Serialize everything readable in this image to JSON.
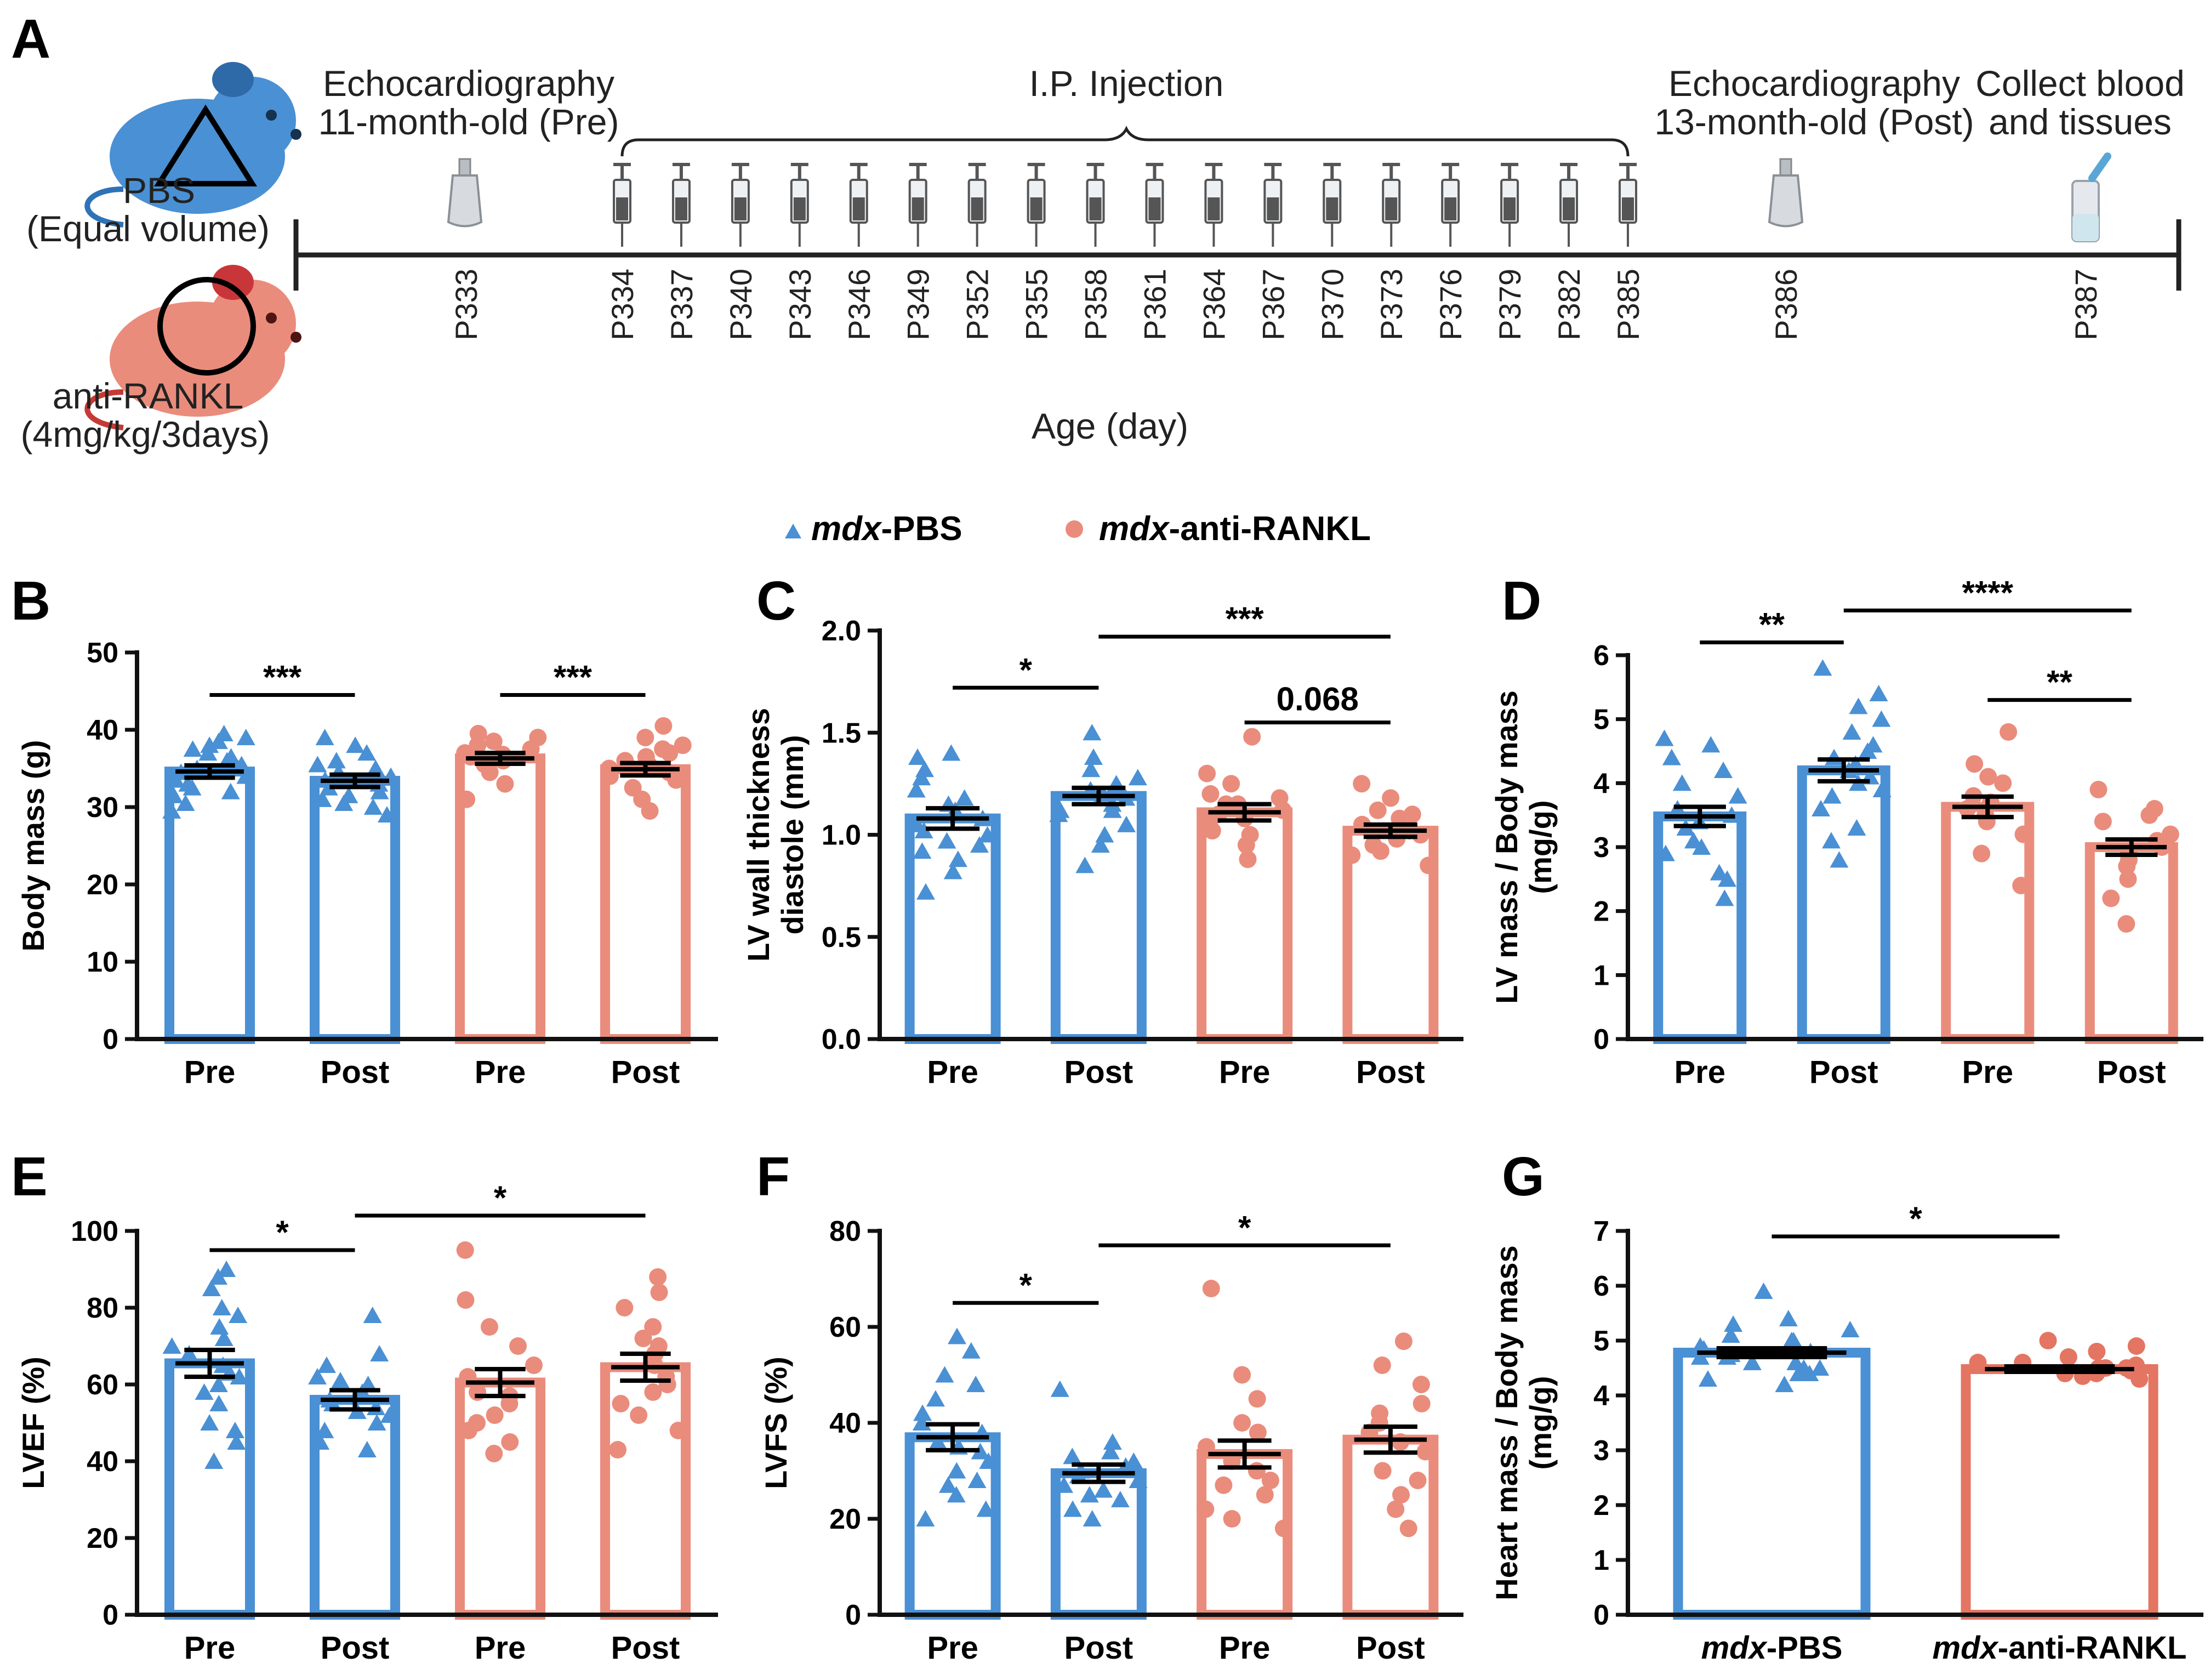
{
  "colors": {
    "pbs": "#4a90d4",
    "rankl": "#ea8c7c",
    "rankl_dark": "#e47563",
    "axis": "#111111",
    "err": "#000000",
    "timeline": "#222222"
  },
  "panel_labels": {
    "a": "A",
    "b": "B",
    "c": "C",
    "d": "D",
    "e": "E",
    "f": "F",
    "g": "G"
  },
  "schematic": {
    "pbs_label": "PBS",
    "pbs_sub": "(Equal volume)",
    "rankl_label": "anti-RANKL",
    "rankl_sub": "(4mg/kg/3days)",
    "echo_pre_1": "Echocardiography",
    "echo_pre_2": "11-month-old (Pre)",
    "ip_label": "I.P. Injection",
    "echo_post_1": "Echocardiography",
    "echo_post_2": "13-month-old (Post)",
    "collect_1": "Collect blood",
    "collect_2": "and tissues",
    "days": [
      "P333",
      "P334",
      "P337",
      "P340",
      "P343",
      "P346",
      "P349",
      "P352",
      "P355",
      "P358",
      "P361",
      "P364",
      "P367",
      "P370",
      "P373",
      "P376",
      "P379",
      "P382",
      "P385",
      "P386",
      "P387"
    ],
    "injection_count": 18,
    "axis_label": "Age (day)",
    "icons": {
      "mouse": "mouse-icon",
      "syringe": "syringe-icon",
      "ultrasound": "ultrasound-probe-icon",
      "tube": "collection-tube-icon"
    }
  },
  "legend": {
    "pbs_italic": "mdx",
    "pbs_rest": "-PBS",
    "rankl_italic": "mdx",
    "rankl_rest": "-anti-RANKL",
    "pbs_marker": "triangle",
    "rankl_marker": "circle"
  },
  "chart_data": [
    {
      "id": "B",
      "type": "bar",
      "ylabel": "Body mass (g)",
      "ylim": [
        0,
        50
      ],
      "yticks": [
        0,
        10,
        20,
        30,
        40,
        50
      ],
      "categories": [
        "Pre",
        "Post",
        "Pre",
        "Post"
      ],
      "groups": [
        "mdx-PBS",
        "mdx-PBS",
        "mdx-anti-RANKL",
        "mdx-anti-RANKL"
      ],
      "means": [
        34.6,
        33.4,
        36.3,
        34.9
      ],
      "sem": [
        0.8,
        0.8,
        0.7,
        0.8
      ],
      "points": [
        [
          29.5,
          30.5,
          31.5,
          32.5,
          33,
          33.5,
          34,
          34.5,
          35,
          35.5,
          36,
          36.5,
          37,
          37.5,
          38,
          38.5,
          39,
          39.5,
          32,
          35
        ],
        [
          29,
          30,
          31,
          31.5,
          32,
          32.5,
          33,
          33.5,
          34,
          34.5,
          35,
          35.5,
          36,
          37,
          38,
          39,
          30.5
        ],
        [
          31,
          33,
          34.5,
          35.5,
          36,
          36.5,
          37,
          37.5,
          38,
          38.5,
          39,
          39.5,
          36.8
        ],
        [
          29.5,
          31,
          32.5,
          33.5,
          34,
          34.5,
          35,
          35.5,
          36,
          36.5,
          37,
          37.5,
          38,
          39,
          40.5
        ]
      ],
      "comparisons": [
        {
          "from": 0,
          "to": 1,
          "label": "***",
          "y": 44.5
        },
        {
          "from": 2,
          "to": 3,
          "label": "***",
          "y": 44.5
        }
      ]
    },
    {
      "id": "C",
      "type": "bar",
      "ylabel": "LV wall thickness diastole (mm)",
      "ylabel_lines": [
        "LV wall thickness",
        "diastole (mm)"
      ],
      "ylim": [
        0,
        2.0
      ],
      "yticks": [
        0.0,
        0.5,
        1.0,
        1.5,
        2.0
      ],
      "categories": [
        "Pre",
        "Post",
        "Pre",
        "Post"
      ],
      "groups": [
        "mdx-PBS",
        "mdx-PBS",
        "mdx-anti-RANKL",
        "mdx-anti-RANKL"
      ],
      "means": [
        1.08,
        1.19,
        1.11,
        1.02
      ],
      "sem": [
        0.05,
        0.04,
        0.04,
        0.03
      ],
      "points": [
        [
          0.72,
          0.82,
          0.88,
          0.92,
          0.97,
          1.0,
          1.02,
          1.05,
          1.08,
          1.12,
          1.15,
          1.18,
          1.22,
          1.28,
          1.32,
          1.38,
          1.4,
          0.95
        ],
        [
          0.85,
          0.95,
          1.0,
          1.05,
          1.1,
          1.12,
          1.15,
          1.18,
          1.2,
          1.22,
          1.25,
          1.28,
          1.32,
          1.38,
          1.5,
          1.12
        ],
        [
          0.88,
          0.95,
          1.0,
          1.05,
          1.08,
          1.12,
          1.15,
          1.18,
          1.2,
          1.25,
          1.3,
          1.48,
          1.1,
          1.02,
          1.15
        ],
        [
          0.85,
          0.9,
          0.92,
          0.95,
          0.98,
          1.0,
          1.02,
          1.05,
          1.08,
          1.1,
          1.12,
          1.18,
          1.25
        ]
      ],
      "comparisons": [
        {
          "from": 0,
          "to": 1,
          "label": "*",
          "y": 1.72
        },
        {
          "from": 1,
          "to": 3,
          "label": "***",
          "y": 1.97
        },
        {
          "from": 2,
          "to": 3,
          "label": "0.068",
          "y": 1.55
        }
      ]
    },
    {
      "id": "D",
      "type": "bar",
      "ylabel": "LV mass / Body mass (mg/g)",
      "ylabel_lines": [
        "LV mass / Body mass",
        "(mg/g)"
      ],
      "ylim": [
        0,
        6
      ],
      "yticks": [
        0,
        1,
        2,
        3,
        4,
        5,
        6
      ],
      "categories": [
        "Pre",
        "Post",
        "Pre",
        "Post"
      ],
      "groups": [
        "mdx-PBS",
        "mdx-PBS",
        "mdx-anti-RANKL",
        "mdx-anti-RANKL"
      ],
      "means": [
        3.48,
        4.2,
        3.63,
        3.0
      ],
      "sem": [
        0.15,
        0.17,
        0.16,
        0.12
      ],
      "points": [
        [
          2.2,
          2.5,
          2.6,
          2.9,
          3.1,
          3.3,
          3.4,
          3.5,
          3.6,
          3.8,
          4.0,
          4.2,
          4.4,
          4.6,
          4.7,
          3.0
        ],
        [
          2.8,
          3.1,
          3.3,
          3.6,
          3.8,
          4.0,
          4.1,
          4.2,
          4.3,
          4.4,
          4.5,
          4.6,
          4.8,
          5.0,
          5.2,
          5.4,
          5.8,
          3.9
        ],
        [
          2.4,
          2.9,
          3.2,
          3.4,
          3.6,
          3.7,
          3.8,
          4.0,
          4.1,
          4.3,
          4.8,
          3.5
        ],
        [
          1.8,
          2.2,
          2.5,
          2.7,
          2.8,
          2.9,
          3.0,
          3.1,
          3.2,
          3.4,
          3.5,
          3.6,
          3.9
        ]
      ],
      "comparisons": [
        {
          "from": 0,
          "to": 1,
          "label": "**",
          "y": 6.2
        },
        {
          "from": 1,
          "to": 3,
          "label": "****",
          "y": 6.7
        },
        {
          "from": 2,
          "to": 3,
          "label": "**",
          "y": 5.3
        }
      ]
    },
    {
      "id": "E",
      "type": "bar",
      "ylabel": "LVEF (%)",
      "ylim": [
        0,
        100
      ],
      "yticks": [
        0,
        20,
        40,
        60,
        80,
        100
      ],
      "categories": [
        "Pre",
        "Post",
        "Pre",
        "Post"
      ],
      "groups": [
        "mdx-PBS",
        "mdx-PBS",
        "mdx-anti-RANKL",
        "mdx-anti-RANKL"
      ],
      "means": [
        65.5,
        56,
        60.5,
        64.5
      ],
      "sem": [
        3.5,
        2.5,
        3.5,
        3.5
      ],
      "points": [
        [
          40,
          45,
          50,
          55,
          58,
          60,
          62,
          65,
          68,
          70,
          72,
          75,
          78,
          80,
          85,
          88,
          90,
          48,
          63
        ],
        [
          43,
          45,
          48,
          50,
          52,
          54,
          55,
          56,
          58,
          60,
          61,
          62,
          65,
          68,
          78,
          53
        ],
        [
          42,
          45,
          48,
          50,
          52,
          55,
          58,
          62,
          65,
          70,
          75,
          82,
          95,
          57
        ],
        [
          43,
          48,
          52,
          55,
          60,
          62,
          65,
          68,
          70,
          72,
          75,
          80,
          84,
          88,
          58
        ]
      ],
      "comparisons": [
        {
          "from": 0,
          "to": 1,
          "label": "*",
          "y": 95
        },
        {
          "from": 1,
          "to": 3,
          "label": "*",
          "y": 104
        }
      ]
    },
    {
      "id": "F",
      "type": "bar",
      "ylabel": "LVFS (%)",
      "ylim": [
        0,
        80
      ],
      "yticks": [
        0,
        20,
        40,
        60,
        80
      ],
      "categories": [
        "Pre",
        "Post",
        "Pre",
        "Post"
      ],
      "groups": [
        "mdx-PBS",
        "mdx-PBS",
        "mdx-anti-RANKL",
        "mdx-anti-RANKL"
      ],
      "means": [
        37,
        29.5,
        33.5,
        36.5
      ],
      "sem": [
        2.7,
        1.8,
        2.8,
        2.7
      ],
      "points": [
        [
          20,
          22,
          25,
          28,
          30,
          32,
          34,
          36,
          38,
          40,
          42,
          45,
          48,
          50,
          55,
          58,
          27,
          35
        ],
        [
          20,
          22,
          24,
          25,
          26,
          28,
          29,
          30,
          31,
          32,
          33,
          34,
          36,
          47,
          27
        ],
        [
          18,
          20,
          22,
          25,
          27,
          30,
          32,
          35,
          38,
          40,
          45,
          50,
          68,
          28
        ],
        [
          18,
          22,
          25,
          28,
          30,
          34,
          36,
          38,
          40,
          42,
          44,
          48,
          52,
          57
        ]
      ],
      "comparisons": [
        {
          "from": 0,
          "to": 1,
          "label": "*",
          "y": 65
        },
        {
          "from": 1,
          "to": 3,
          "label": "*",
          "y": 77
        }
      ]
    },
    {
      "id": "G",
      "type": "bar",
      "ylabel": "Heart mass / Body mass (mg/g)",
      "ylabel_lines": [
        "Heart mass / Body mass",
        "(mg/g)"
      ],
      "ylim": [
        0,
        7
      ],
      "yticks": [
        0,
        1,
        2,
        3,
        4,
        5,
        6,
        7
      ],
      "categories": [
        "mdx-PBS",
        "mdx-anti-RANKL"
      ],
      "category_italic": [
        "mdx",
        "mdx"
      ],
      "category_rest": [
        "-PBS",
        "-anti-RANKL"
      ],
      "groups": [
        "mdx-PBS",
        "mdx-anti-RANKL"
      ],
      "means": [
        4.78,
        4.48
      ],
      "sem": [
        0.08,
        0.05
      ],
      "points": [
        [
          4.2,
          4.3,
          4.4,
          4.5,
          4.6,
          4.7,
          4.75,
          4.8,
          4.85,
          4.9,
          5.0,
          5.1,
          5.2,
          5.3,
          5.4,
          5.9,
          4.6,
          4.9,
          4.4,
          4.7,
          5.0,
          4.5
        ],
        [
          4.3,
          4.35,
          4.4,
          4.45,
          4.5,
          4.5,
          4.55,
          4.6,
          4.7,
          4.8,
          4.9,
          5.0,
          4.4,
          4.6,
          4.5
        ]
      ],
      "comparisons": [
        {
          "from": 0,
          "to": 1,
          "label": "*",
          "y": 6.9
        }
      ]
    }
  ]
}
